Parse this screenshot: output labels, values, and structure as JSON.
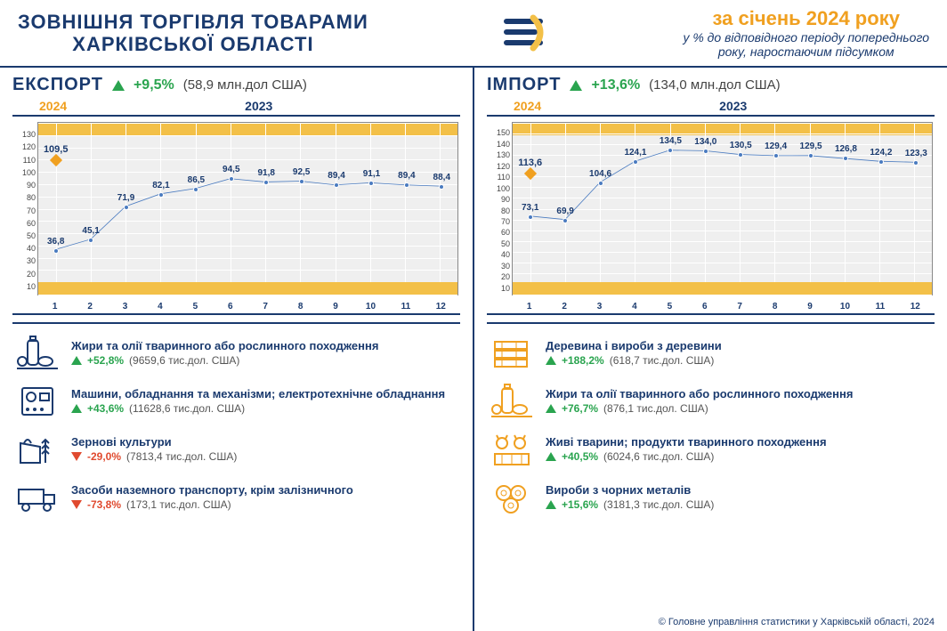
{
  "header": {
    "title_l1": "ЗОВНІШНЯ ТОРГІВЛЯ ТОВАРАМИ",
    "title_l2": "ХАРКІВСЬКОЇ ОБЛАСТІ",
    "period": "за січень 2024 року",
    "sub_l1": "у % до відповідного періоду попереднього",
    "sub_l2": "року, наростаючим підсумком"
  },
  "colors": {
    "navy": "#1a3a6e",
    "gold": "#f3c048",
    "gold_text": "#f0a020",
    "green": "#2aa44f",
    "red": "#e04a2f",
    "line": "#4a7bc0",
    "plot_bg": "#efefef",
    "grid": "#ffffff"
  },
  "export": {
    "name": "ЕКСПОРТ",
    "change": "+9,5%",
    "dir": "up",
    "money": "(58,9 млн.дол США)",
    "y2024": "2024",
    "y2023": "2023",
    "marker_2024_x": 1,
    "marker_2024_y": 109.5,
    "ylim": [
      0,
      140
    ],
    "ytick_step": 10,
    "xticks": [
      1,
      2,
      3,
      4,
      5,
      6,
      7,
      8,
      9,
      10,
      11,
      12
    ],
    "values": [
      36.8,
      45.1,
      71.9,
      82.1,
      86.5,
      94.5,
      91.8,
      92.5,
      89.4,
      91.1,
      89.4,
      88.4
    ],
    "labels": [
      "36,8",
      "45,1",
      "71,9",
      "82,1",
      "86,5",
      "94,5",
      "91,8",
      "92,5",
      "89,4",
      "91,1",
      "89,4",
      "88,4"
    ],
    "marker_label": "109,5",
    "items": [
      {
        "icon": "oil",
        "title": "Жири та олії тваринного або рослинного походження",
        "pct": "+52,8%",
        "dir": "up",
        "money": "(9659,6 тис.дол. США)"
      },
      {
        "icon": "machine",
        "title": "Машини, обладнання та механізми; електротехнічне обладнання",
        "pct": "+43,6%",
        "dir": "up",
        "money": "(11628,6 тис.дол. США)"
      },
      {
        "icon": "grain",
        "title": "Зернові культури",
        "pct": "-29,0%",
        "dir": "down",
        "money": "(7813,4 тис.дол. США)"
      },
      {
        "icon": "truck",
        "title": "Засоби наземного транспорту, крім залізничного",
        "pct": "-73,8%",
        "dir": "down",
        "money": "(173,1 тис.дол. США)"
      }
    ]
  },
  "import": {
    "name": "ІМПОРТ",
    "change": "+13,6%",
    "dir": "up",
    "money": "(134,0 млн.дол США)",
    "y2024": "2024",
    "y2023": "2023",
    "marker_2024_x": 1,
    "marker_2024_y": 113.6,
    "ylim": [
      0,
      160
    ],
    "ytick_step": 10,
    "xticks": [
      1,
      2,
      3,
      4,
      5,
      6,
      7,
      8,
      9,
      10,
      11,
      12
    ],
    "values": [
      73.1,
      69.9,
      104.6,
      124.1,
      134.5,
      134.0,
      130.5,
      129.4,
      129.5,
      126.8,
      124.2,
      123.3
    ],
    "labels": [
      "73,1",
      "69,9",
      "104,6",
      "124,1",
      "134,5",
      "134,0",
      "130,5",
      "129,4",
      "129,5",
      "126,8",
      "124,2",
      "123,3"
    ],
    "marker_label": "113,6",
    "items": [
      {
        "icon": "wood",
        "title": "Деревина і вироби з деревини",
        "pct": "+188,2%",
        "dir": "up",
        "money": "(618,7 тис.дол. США)"
      },
      {
        "icon": "oil",
        "title": "Жири та олії тваринного або рослинного походження",
        "pct": "+76,7%",
        "dir": "up",
        "money": "(876,1 тис.дол. США)"
      },
      {
        "icon": "animals",
        "title": "Живі тварини; продукти тваринного походження",
        "pct": "+40,5%",
        "dir": "up",
        "money": "(6024,6 тис.дол. США)"
      },
      {
        "icon": "metal",
        "title": "Вироби з чорних металів",
        "pct": "+15,6%",
        "dir": "up",
        "money": "(3181,3 тис.дол. США)"
      }
    ]
  },
  "footer": "© Головне управління статистики у Харківській області, 2024"
}
